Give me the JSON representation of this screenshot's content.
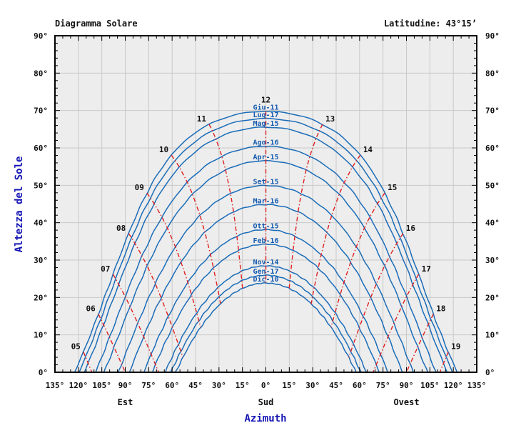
{
  "header": {
    "title": "Diagramma Solare",
    "latitude_label": "Latitudine: 43°15’"
  },
  "chart_data": {
    "type": "line",
    "title": "Diagramma Solare",
    "subtitle": "Latitudine: 43°15’",
    "xlabel": "Azimuth",
    "ylabel": "Altezza del Sole",
    "latitude_deg": 43.25,
    "x_axis": {
      "range": [
        -135,
        135
      ],
      "major_step": 15,
      "minor_step": 5,
      "tick_labels": [
        {
          "az": -135,
          "label": "135°"
        },
        {
          "az": -120,
          "label": "120°"
        },
        {
          "az": -105,
          "label": "105°"
        },
        {
          "az": -90,
          "label": "90°"
        },
        {
          "az": -75,
          "label": "75°"
        },
        {
          "az": -60,
          "label": "60°"
        },
        {
          "az": -45,
          "label": "45°"
        },
        {
          "az": -30,
          "label": "30°"
        },
        {
          "az": -15,
          "label": "15°"
        },
        {
          "az": 0,
          "label": "0°"
        },
        {
          "az": 15,
          "label": "15°"
        },
        {
          "az": 30,
          "label": "30°"
        },
        {
          "az": 45,
          "label": "45°"
        },
        {
          "az": 60,
          "label": "60°"
        },
        {
          "az": 75,
          "label": "75°"
        },
        {
          "az": 90,
          "label": "90°"
        },
        {
          "az": 105,
          "label": "105°"
        },
        {
          "az": 120,
          "label": "120°"
        },
        {
          "az": 135,
          "label": "135°"
        }
      ],
      "direction_labels": [
        {
          "az": -90,
          "label": "Est"
        },
        {
          "az": 0,
          "label": "Sud"
        },
        {
          "az": 90,
          "label": "Ovest"
        }
      ]
    },
    "y_axis": {
      "range": [
        0,
        90
      ],
      "major_step": 10,
      "minor_step": 2,
      "tick_labels": [
        {
          "alt": 0,
          "label": "0°"
        },
        {
          "alt": 10,
          "label": "10°"
        },
        {
          "alt": 20,
          "label": "20°"
        },
        {
          "alt": 30,
          "label": "30°"
        },
        {
          "alt": 40,
          "label": "40°"
        },
        {
          "alt": 50,
          "label": "50°"
        },
        {
          "alt": 60,
          "label": "60°"
        },
        {
          "alt": 70,
          "label": "70°"
        },
        {
          "alt": 80,
          "label": "80°"
        },
        {
          "alt": 90,
          "label": "90°"
        }
      ]
    },
    "months": [
      {
        "label": "Giu-11",
        "declination": 23.05
      },
      {
        "label": "Lug-17",
        "declination": 21.1
      },
      {
        "label": "Mag-15",
        "declination": 18.8
      },
      {
        "label": "Ago-16",
        "declination": 13.7
      },
      {
        "label": "Apr-15",
        "declination": 9.8
      },
      {
        "label": "Set-15",
        "declination": 3.2
      },
      {
        "label": "Mar-16",
        "declination": -1.9
      },
      {
        "label": "Ott-15",
        "declination": -8.6
      },
      {
        "label": "Feb-16",
        "declination": -12.5
      },
      {
        "label": "Nov-14",
        "declination": -18.3
      },
      {
        "label": "Gen-17",
        "declination": -20.8
      },
      {
        "label": "Dic-10",
        "declination": -22.9
      }
    ],
    "hours": [
      {
        "hour": 5,
        "label": "05"
      },
      {
        "hour": 6,
        "label": "06"
      },
      {
        "hour": 7,
        "label": "07"
      },
      {
        "hour": 8,
        "label": "08"
      },
      {
        "hour": 9,
        "label": "09"
      },
      {
        "hour": 10,
        "label": "10"
      },
      {
        "hour": 11,
        "label": "11"
      },
      {
        "hour": 12,
        "label": "12"
      },
      {
        "hour": 13,
        "label": "13"
      },
      {
        "hour": 14,
        "label": "14"
      },
      {
        "hour": 15,
        "label": "15"
      },
      {
        "hour": 16,
        "label": "16"
      },
      {
        "hour": 17,
        "label": "17"
      },
      {
        "hour": 18,
        "label": "18"
      },
      {
        "hour": 19,
        "label": "19"
      }
    ],
    "colors": {
      "month_curve": "#1b6cb8",
      "month_label": "#155cb0",
      "hour_line": "#df1f1f",
      "grid": "#c9c9c9",
      "plot_bg": "#ededed",
      "axis_frame": "#000000",
      "tick_text": "#111111",
      "axis_title": "#1515b5"
    },
    "legend_position": "none",
    "grid": true
  }
}
